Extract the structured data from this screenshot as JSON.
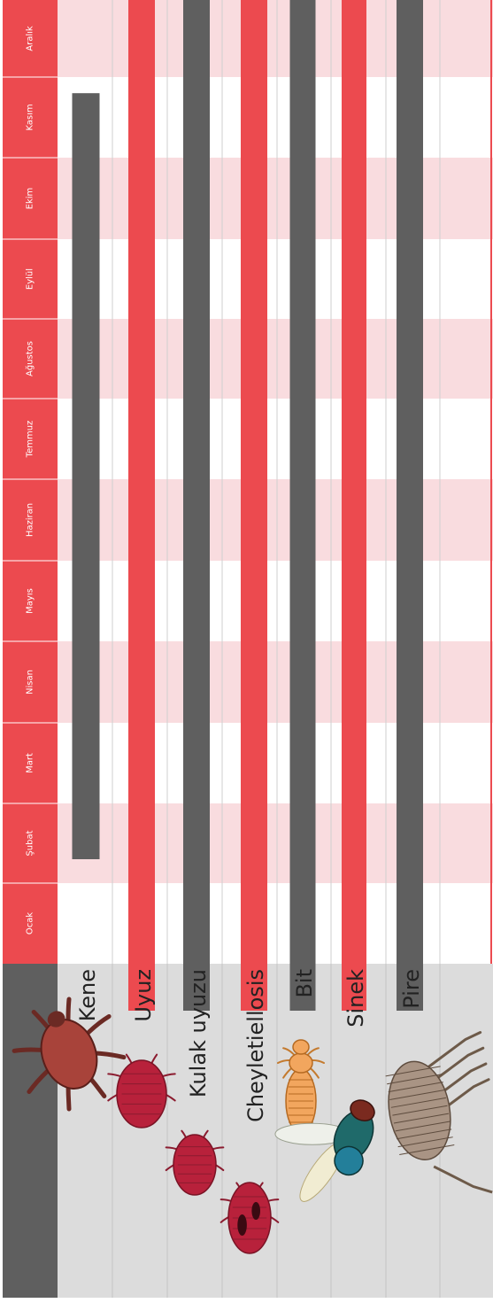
{
  "chart_data": {
    "type": "bar",
    "orientation": "horizontal-timeline",
    "months": [
      "Ocak",
      "Şubat",
      "Mart",
      "Nisan",
      "Mayıs",
      "Haziran",
      "Temmuz",
      "Ağustos",
      "Eylül",
      "Ekim",
      "Kasım",
      "Aralık"
    ],
    "series": [
      {
        "name": "Kene",
        "start": 1.3,
        "end": 10.8,
        "color": "#5f5f5f",
        "icon": "tick-icon"
      },
      {
        "name": "Uyuz",
        "start": 0.0,
        "end": 12.0,
        "color": "#ec4a4f",
        "icon": "mite-icon"
      },
      {
        "name": "Kulak uyuzu",
        "start": 0.0,
        "end": 12.0,
        "color": "#5f5f5f",
        "icon": "mite-icon"
      },
      {
        "name": "Cheyletiellosis",
        "start": 0.0,
        "end": 12.0,
        "color": "#ec4a4f",
        "icon": "mite-icon"
      },
      {
        "name": "Bit",
        "start": 0.0,
        "end": 12.0,
        "color": "#5f5f5f",
        "icon": "louse-icon"
      },
      {
        "name": "Sinek",
        "start": 0.0,
        "end": 12.0,
        "color": "#ec4a4f",
        "icon": "fly-icon"
      },
      {
        "name": "Pire",
        "start": 0.0,
        "end": 12.0,
        "color": "#5f5f5f",
        "icon": "flea-icon"
      }
    ],
    "colors": {
      "header": "#ec4a4f",
      "band": "#f9dcdf",
      "left_panel": "#dcdcdc",
      "left_corner": "#5f5f5f",
      "grid": "#cfcfcf"
    }
  }
}
